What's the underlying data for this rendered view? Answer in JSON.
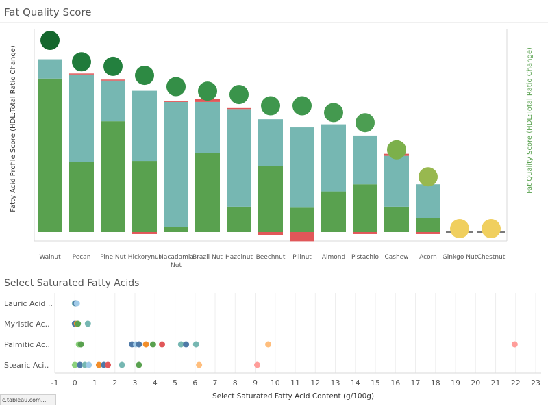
{
  "status_bar": "c.tableau.com...",
  "chart_data": [
    {
      "type": "bar",
      "title": "Fat Quality Score",
      "ylabel": "Fatty Acid Profile Score (HDL:Total Ratio Change)",
      "y2label": "Fat Quality Score (HDL:Total Ratio Change)",
      "ylim": [
        -0.1,
        2.0
      ],
      "y_ticks": [
        "0.0",
        "0.2",
        "0.4",
        "0.6",
        "0.8",
        "1.0",
        "1.2",
        "1.4",
        "1.6",
        "1.8",
        "2.0"
      ],
      "y2lim": [
        -0.1,
        1.9
      ],
      "y2_ticks": [
        "0.0",
        "0.2",
        "0.4",
        "0.6",
        "0.8",
        "1.0",
        "1.2",
        "1.4",
        "1.6",
        "1.8"
      ],
      "categories": [
        "Walnut",
        "Pecan",
        "Pine Nut",
        "Hickorynut",
        "Macadamia Nut",
        "Brazil Nut",
        "Hazelnut",
        "Beechnut",
        "Pilinut",
        "Almond",
        "Pistachio",
        "Cashew",
        "Acorn",
        "Ginkgo Nut",
        "Chestnut"
      ],
      "series": [
        {
          "values": [
            1.51,
            0.69,
            1.09,
            0.7,
            0.05,
            0.78,
            0.25,
            0.65,
            0.24,
            0.4,
            0.47,
            0.25,
            0.14,
            0.0,
            0.0
          ],
          "color": "#59a14f"
        },
        {
          "values": [
            0.19,
            0.86,
            0.4,
            0.69,
            1.23,
            0.5,
            0.96,
            0.46,
            0.79,
            0.66,
            0.48,
            0.5,
            0.33,
            0.0,
            0.0
          ],
          "color": "#76b7b2"
        },
        {
          "values": [
            0.0,
            0.01,
            0.01,
            -0.02,
            0.01,
            0.03,
            0.01,
            -0.03,
            -0.09,
            0.0,
            -0.02,
            0.02,
            -0.02,
            0.0,
            0.0
          ],
          "color": "#e15759"
        },
        {
          "values": [
            1.7,
            1.51,
            1.47,
            1.39,
            1.29,
            1.25,
            1.22,
            1.12,
            1.12,
            1.06,
            0.97,
            0.73,
            0.49,
            0.03,
            0.03
          ],
          "circle_colors": [
            "#15672d",
            "#1f7a3a",
            "#23803e",
            "#2d8a43",
            "#348f47",
            "#389249",
            "#3a944b",
            "#3f974d",
            "#3f974d",
            "#44994f",
            "#4c9e52",
            "#7cb04b",
            "#98b84f",
            "#f0cf5e",
            "#f0cf5e"
          ]
        }
      ]
    },
    {
      "type": "scatter",
      "title": "Select Saturated Fatty Acids",
      "xlabel": "Select Saturated Fatty Acid Content (g/100g)",
      "xlim": [
        -1,
        23
      ],
      "x_ticks": [
        "-1",
        "0",
        "1",
        "2",
        "3",
        "4",
        "5",
        "6",
        "7",
        "8",
        "9",
        "10",
        "11",
        "12",
        "13",
        "14",
        "15",
        "16",
        "17",
        "18",
        "19",
        "20",
        "21",
        "22",
        "23"
      ],
      "rows": [
        {
          "label": "Lauric Acid ..",
          "points": [
            {
              "x": 0.0,
              "color": "#76b7b2"
            },
            {
              "x": 0.05,
              "color": "#4e79a7"
            },
            {
              "x": 0.1,
              "color": "#a0cbe8"
            }
          ]
        },
        {
          "label": "Myristic Ac..",
          "points": [
            {
              "x": 0.0,
              "color": "#4e79a7"
            },
            {
              "x": 0.1,
              "color": "#f28e2b"
            },
            {
              "x": 0.15,
              "color": "#59a14f"
            },
            {
              "x": 0.65,
              "color": "#76b7b2"
            }
          ]
        },
        {
          "label": "Palmitic Ac..",
          "points": [
            {
              "x": 0.2,
              "color": "#8cd17d"
            },
            {
              "x": 0.3,
              "color": "#59a14f"
            },
            {
              "x": 2.85,
              "color": "#4e79a7"
            },
            {
              "x": 3.05,
              "color": "#a0cbe8"
            },
            {
              "x": 3.2,
              "color": "#4e79a7"
            },
            {
              "x": 3.55,
              "color": "#f28e2b"
            },
            {
              "x": 3.9,
              "color": "#59a14f"
            },
            {
              "x": 4.35,
              "color": "#e15759"
            },
            {
              "x": 5.3,
              "color": "#76b7b2"
            },
            {
              "x": 5.55,
              "color": "#4e79a7"
            },
            {
              "x": 6.05,
              "color": "#76b7b2"
            },
            {
              "x": 9.65,
              "color": "#ffbe7d"
            },
            {
              "x": 21.95,
              "color": "#ff9d9a"
            }
          ]
        },
        {
          "label": "Stearic Aci..",
          "points": [
            {
              "x": 0.0,
              "color": "#8cd17d"
            },
            {
              "x": 0.25,
              "color": "#4e79a7"
            },
            {
              "x": 0.5,
              "color": "#76b7b2"
            },
            {
              "x": 0.7,
              "color": "#a0cbe8"
            },
            {
              "x": 1.2,
              "color": "#f28e2b"
            },
            {
              "x": 1.45,
              "color": "#4e79a7"
            },
            {
              "x": 1.65,
              "color": "#e15759"
            },
            {
              "x": 2.35,
              "color": "#76b7b2"
            },
            {
              "x": 3.2,
              "color": "#59a14f"
            },
            {
              "x": 6.2,
              "color": "#ffbe7d"
            },
            {
              "x": 9.1,
              "color": "#ff9d9a"
            }
          ]
        }
      ]
    }
  ]
}
